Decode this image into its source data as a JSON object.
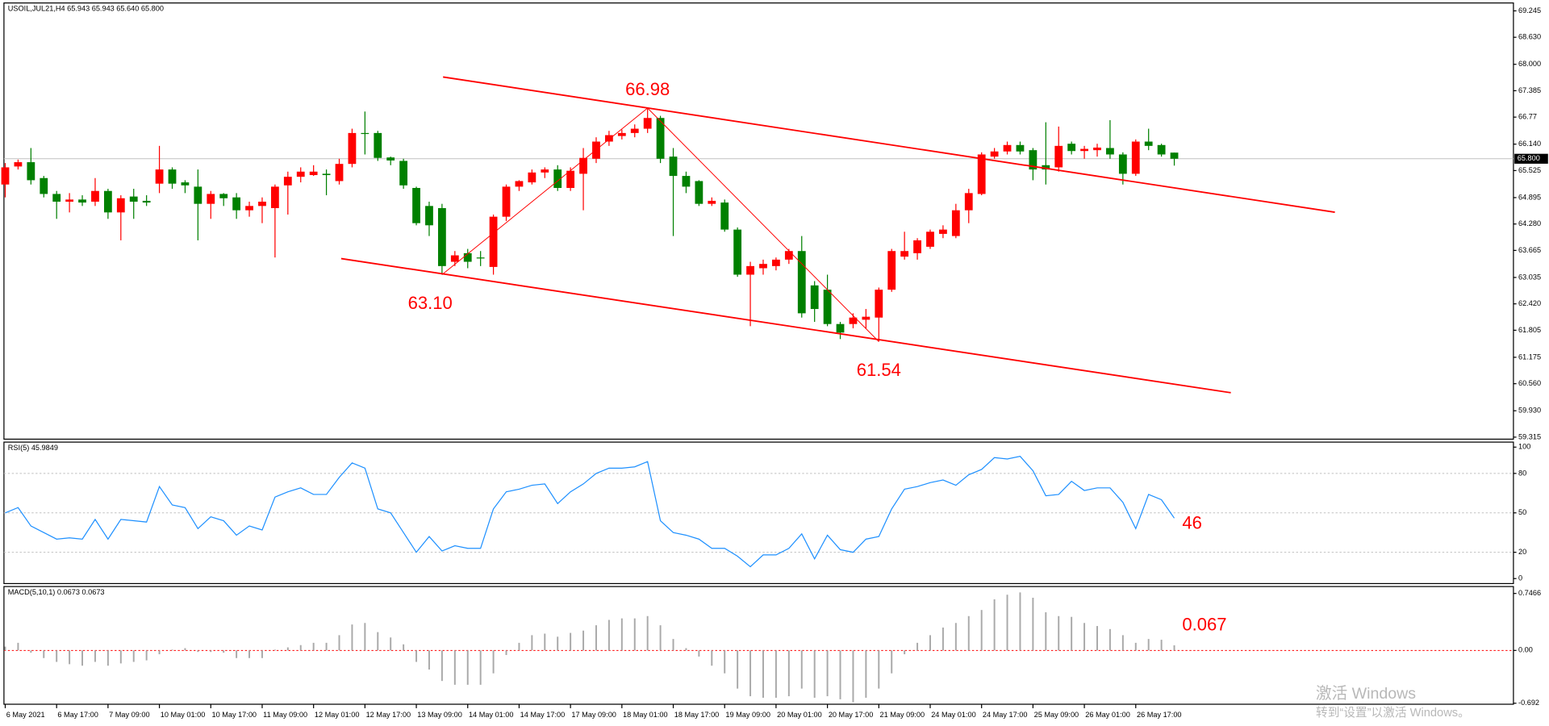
{
  "chart_data": [
    {
      "type": "candlestick",
      "title": "USOIL,JUL21,H4  65.943 65.943 65.640 65.800",
      "categories": [
        "6 May 2021",
        null,
        null,
        null,
        "6 May 17:00",
        null,
        null,
        null,
        "7 May 09:00",
        null,
        null,
        null,
        "10 May 01:00",
        null,
        null,
        null,
        "10 May 17:00",
        null,
        null,
        null,
        "11 May 09:00",
        null,
        null,
        null,
        "12 May 01:00",
        null,
        null,
        null,
        "12 May 17:00",
        null,
        null,
        null,
        "13 May 09:00",
        null,
        null,
        null,
        "14 May 01:00",
        null,
        null,
        null,
        "14 May 17:00",
        null,
        null,
        null,
        "17 May 09:00",
        null,
        null,
        null,
        "18 May 01:00",
        null,
        null,
        null,
        "18 May 17:00",
        null,
        null,
        null,
        "19 May 09:00",
        null,
        null,
        null,
        "20 May 01:00",
        null,
        null,
        null,
        "20 May 17:00",
        null,
        null,
        null,
        "21 May 09:00",
        null,
        null,
        null,
        "24 May 01:00",
        null,
        null,
        null,
        "24 May 17:00",
        null,
        null,
        null,
        "25 May 09:00",
        null,
        null,
        null,
        "26 May 01:00",
        null,
        null,
        null,
        "26 May 17:00",
        null,
        null,
        null
      ],
      "open": [
        65.2,
        65.62,
        65.72,
        65.35,
        64.98,
        64.8,
        64.85,
        64.8,
        65.05,
        64.55,
        64.92,
        64.82,
        65.22,
        65.55,
        65.25,
        65.15,
        64.75,
        64.98,
        64.9,
        64.6,
        64.7,
        64.65,
        65.18,
        65.38,
        65.42,
        65.45,
        65.28,
        65.68,
        66.4,
        66.4,
        65.83,
        65.75,
        65.12,
        64.7,
        64.65,
        63.4,
        63.6,
        63.5,
        63.28,
        64.45,
        65.15,
        65.25,
        65.48,
        65.55,
        65.12,
        65.45,
        65.8,
        66.2,
        66.33,
        66.4,
        66.5,
        66.75,
        65.85,
        65.4,
        65.28,
        64.75,
        64.78,
        64.15,
        63.1,
        63.25,
        63.3,
        63.45,
        63.65,
        62.85,
        62.75,
        61.95,
        61.95,
        62.05,
        62.1,
        62.75,
        63.52,
        63.6,
        63.75,
        64.05,
        64.0,
        64.6,
        64.98,
        65.85,
        65.97,
        66.12,
        66.0,
        65.65,
        65.6,
        66.15,
        65.98,
        66.0,
        66.05,
        65.9,
        65.45,
        66.2,
        66.12,
        65.943
      ],
      "high": [
        65.7,
        65.78,
        66.05,
        65.4,
        65.05,
        65.0,
        64.95,
        65.35,
        65.1,
        64.95,
        65.1,
        64.95,
        66.1,
        65.6,
        65.3,
        65.55,
        65.05,
        65.0,
        65.0,
        64.8,
        64.9,
        65.2,
        65.5,
        65.6,
        65.65,
        65.55,
        65.8,
        66.5,
        66.9,
        66.45,
        65.85,
        65.8,
        65.15,
        64.8,
        64.75,
        63.65,
        63.7,
        63.65,
        64.5,
        65.2,
        65.3,
        65.55,
        65.6,
        65.65,
        65.6,
        66.05,
        66.3,
        66.45,
        66.48,
        66.6,
        66.98,
        66.8,
        66.05,
        65.5,
        65.3,
        64.9,
        64.85,
        64.2,
        63.4,
        63.45,
        63.5,
        63.7,
        64.0,
        62.95,
        63.1,
        62.0,
        62.2,
        62.3,
        62.8,
        63.7,
        64.1,
        63.95,
        64.15,
        64.25,
        64.75,
        65.1,
        65.95,
        66.05,
        66.2,
        66.2,
        66.05,
        66.65,
        66.55,
        66.2,
        66.1,
        66.15,
        66.7,
        65.95,
        66.25,
        66.5,
        66.15,
        65.943
      ],
      "low": [
        64.9,
        65.55,
        65.2,
        64.9,
        64.4,
        64.55,
        64.7,
        64.7,
        64.4,
        63.9,
        64.4,
        64.7,
        65.0,
        65.1,
        65.0,
        63.9,
        64.4,
        64.7,
        64.4,
        64.45,
        64.3,
        63.5,
        64.5,
        65.25,
        65.4,
        64.95,
        65.2,
        65.6,
        65.9,
        65.75,
        65.65,
        65.1,
        64.25,
        64.0,
        63.1,
        63.3,
        63.25,
        63.3,
        63.1,
        64.35,
        65.05,
        65.2,
        65.35,
        65.05,
        65.05,
        64.6,
        65.7,
        66.1,
        66.25,
        66.3,
        66.4,
        65.7,
        64.0,
        65.0,
        64.7,
        64.7,
        64.1,
        63.05,
        61.9,
        63.1,
        63.2,
        63.35,
        62.1,
        62.0,
        61.9,
        61.6,
        61.85,
        61.85,
        61.54,
        62.7,
        63.45,
        63.45,
        63.7,
        63.95,
        63.95,
        64.3,
        64.95,
        65.8,
        65.9,
        65.9,
        65.3,
        65.2,
        65.5,
        65.9,
        65.8,
        65.85,
        65.8,
        65.2,
        65.4,
        66.0,
        65.85,
        65.64
      ],
      "close": [
        65.6,
        65.72,
        65.3,
        64.98,
        64.8,
        64.85,
        64.78,
        65.05,
        64.55,
        64.88,
        64.8,
        64.78,
        65.55,
        65.22,
        65.18,
        64.75,
        64.98,
        64.88,
        64.6,
        64.7,
        64.8,
        65.15,
        65.38,
        65.5,
        65.5,
        65.42,
        65.68,
        66.4,
        66.38,
        65.82,
        65.76,
        65.18,
        64.3,
        64.25,
        63.3,
        63.55,
        63.4,
        63.48,
        64.45,
        65.15,
        65.28,
        65.48,
        65.55,
        65.12,
        65.52,
        65.82,
        66.2,
        66.35,
        66.4,
        66.5,
        66.75,
        65.8,
        65.4,
        65.15,
        64.75,
        64.82,
        64.15,
        63.1,
        63.3,
        63.35,
        63.45,
        63.65,
        62.2,
        62.3,
        61.95,
        61.75,
        62.1,
        62.12,
        62.75,
        63.65,
        63.65,
        63.9,
        64.1,
        64.15,
        64.6,
        65.0,
        65.9,
        65.97,
        66.12,
        65.97,
        65.55,
        65.55,
        66.1,
        65.98,
        66.03,
        66.06,
        65.9,
        65.45,
        66.2,
        66.1,
        65.9,
        65.8
      ],
      "up_color": "#ff0000",
      "down_color": "#008000",
      "xlim": [
        -0.1,
        117.4
      ],
      "ylim": [
        59.268,
        69.429
      ],
      "yticks": [
        69.245,
        {
          "value": 68.63,
          "label": "68.630"
        },
        {
          "value": 68.0,
          "label": "68.000"
        },
        67.385,
        66.77,
        {
          "value": 66.14,
          "label": "66.140"
        },
        65.525,
        64.895,
        {
          "value": 64.28,
          "label": "64.280"
        },
        63.665,
        63.035,
        {
          "value": 62.42,
          "label": "62.420"
        },
        61.805,
        61.175,
        {
          "value": 60.56,
          "label": "60.560"
        },
        {
          "value": 59.93,
          "label": "59.930"
        },
        59.315
      ],
      "last_price": {
        "value": 65.8,
        "label": "65.800"
      },
      "annotation_color": "#ff0000",
      "trendlines": [
        {
          "x": [
            34.08,
            103.5
          ],
          "y": [
            67.705,
            64.555
          ]
        },
        {
          "x": [
            26.15,
            95.4
          ],
          "y": [
            63.475,
            60.35
          ]
        }
      ],
      "zigzag": [
        {
          "x": 34,
          "value": 63.1,
          "label": "63.10"
        },
        {
          "x": 50,
          "value": 66.98,
          "label": "66.98"
        },
        {
          "x": 68,
          "value": 61.54,
          "label": "61.54"
        }
      ]
    },
    {
      "type": "line",
      "title": "RSI(5) 45.9849",
      "color": "#1e90ff",
      "values": [
        50,
        54,
        40,
        35,
        30,
        31,
        30,
        45,
        30,
        45,
        44,
        43,
        70,
        56,
        54,
        38,
        47,
        44,
        33,
        40,
        37,
        62,
        66,
        69,
        64,
        64,
        77,
        88,
        84,
        53,
        50,
        35,
        20,
        32,
        21,
        25,
        23,
        23,
        53,
        66,
        68,
        71,
        72,
        57,
        66,
        72,
        80,
        84,
        84,
        85,
        89,
        44,
        35,
        33,
        30,
        23,
        23,
        17,
        9,
        18,
        18,
        23,
        34,
        15,
        33,
        22,
        20,
        30,
        32,
        53,
        68,
        70,
        73,
        75,
        71,
        79,
        83,
        92,
        91,
        93,
        82,
        63,
        64,
        74,
        67,
        69,
        69,
        58,
        38,
        64,
        60,
        45.9849
      ],
      "xlim": [
        -0.1,
        117.4
      ],
      "ylim": [
        -3.8,
        103.8
      ],
      "yticks": [
        100,
        80,
        50,
        20,
        0
      ],
      "levels": [
        20,
        50,
        80
      ],
      "level_color": "#c0c0c0",
      "annotation": 46,
      "annotation_color": "#ff0000"
    },
    {
      "type": "bar",
      "title": "MACD(5,10,1) 0.0673 0.0673",
      "color": "#a9a9a9",
      "values": [
        0.05,
        0.1,
        -0.03,
        -0.1,
        -0.15,
        -0.18,
        -0.2,
        -0.15,
        -0.2,
        -0.17,
        -0.15,
        -0.13,
        -0.05,
        0.01,
        0.03,
        -0.02,
        -0.02,
        -0.03,
        -0.1,
        -0.1,
        -0.1,
        0.01,
        0.04,
        0.07,
        0.1,
        0.1,
        0.2,
        0.34,
        0.36,
        0.24,
        0.17,
        0.08,
        -0.15,
        -0.25,
        -0.4,
        -0.45,
        -0.45,
        -0.45,
        -0.3,
        -0.06,
        0.1,
        0.2,
        0.22,
        0.18,
        0.23,
        0.26,
        0.33,
        0.4,
        0.42,
        0.42,
        0.45,
        0.33,
        0.15,
        0.03,
        -0.08,
        -0.2,
        -0.3,
        -0.5,
        -0.6,
        -0.62,
        -0.62,
        -0.6,
        -0.5,
        -0.62,
        -0.6,
        -0.64,
        -0.68,
        -0.62,
        -0.5,
        -0.3,
        -0.05,
        0.1,
        0.2,
        0.3,
        0.36,
        0.45,
        0.53,
        0.67,
        0.73,
        0.76,
        0.69,
        0.5,
        0.45,
        0.44,
        0.36,
        0.32,
        0.28,
        0.2,
        0.1,
        0.15,
        0.14,
        0.0673
      ],
      "xlim": [
        -0.1,
        117.4
      ],
      "ylim": [
        -0.705,
        0.8373
      ],
      "yticks": [
        0.7466,
        {
          "value": 0,
          "label": "0.00"
        },
        -0.692
      ],
      "levels": [
        0
      ],
      "level_color": "#ff0000",
      "annotation": 0.067,
      "annotation_color": "#ff0000"
    }
  ],
  "watermark": [
    "激活 Windows",
    "转到“设置”以激活 Windows。"
  ]
}
